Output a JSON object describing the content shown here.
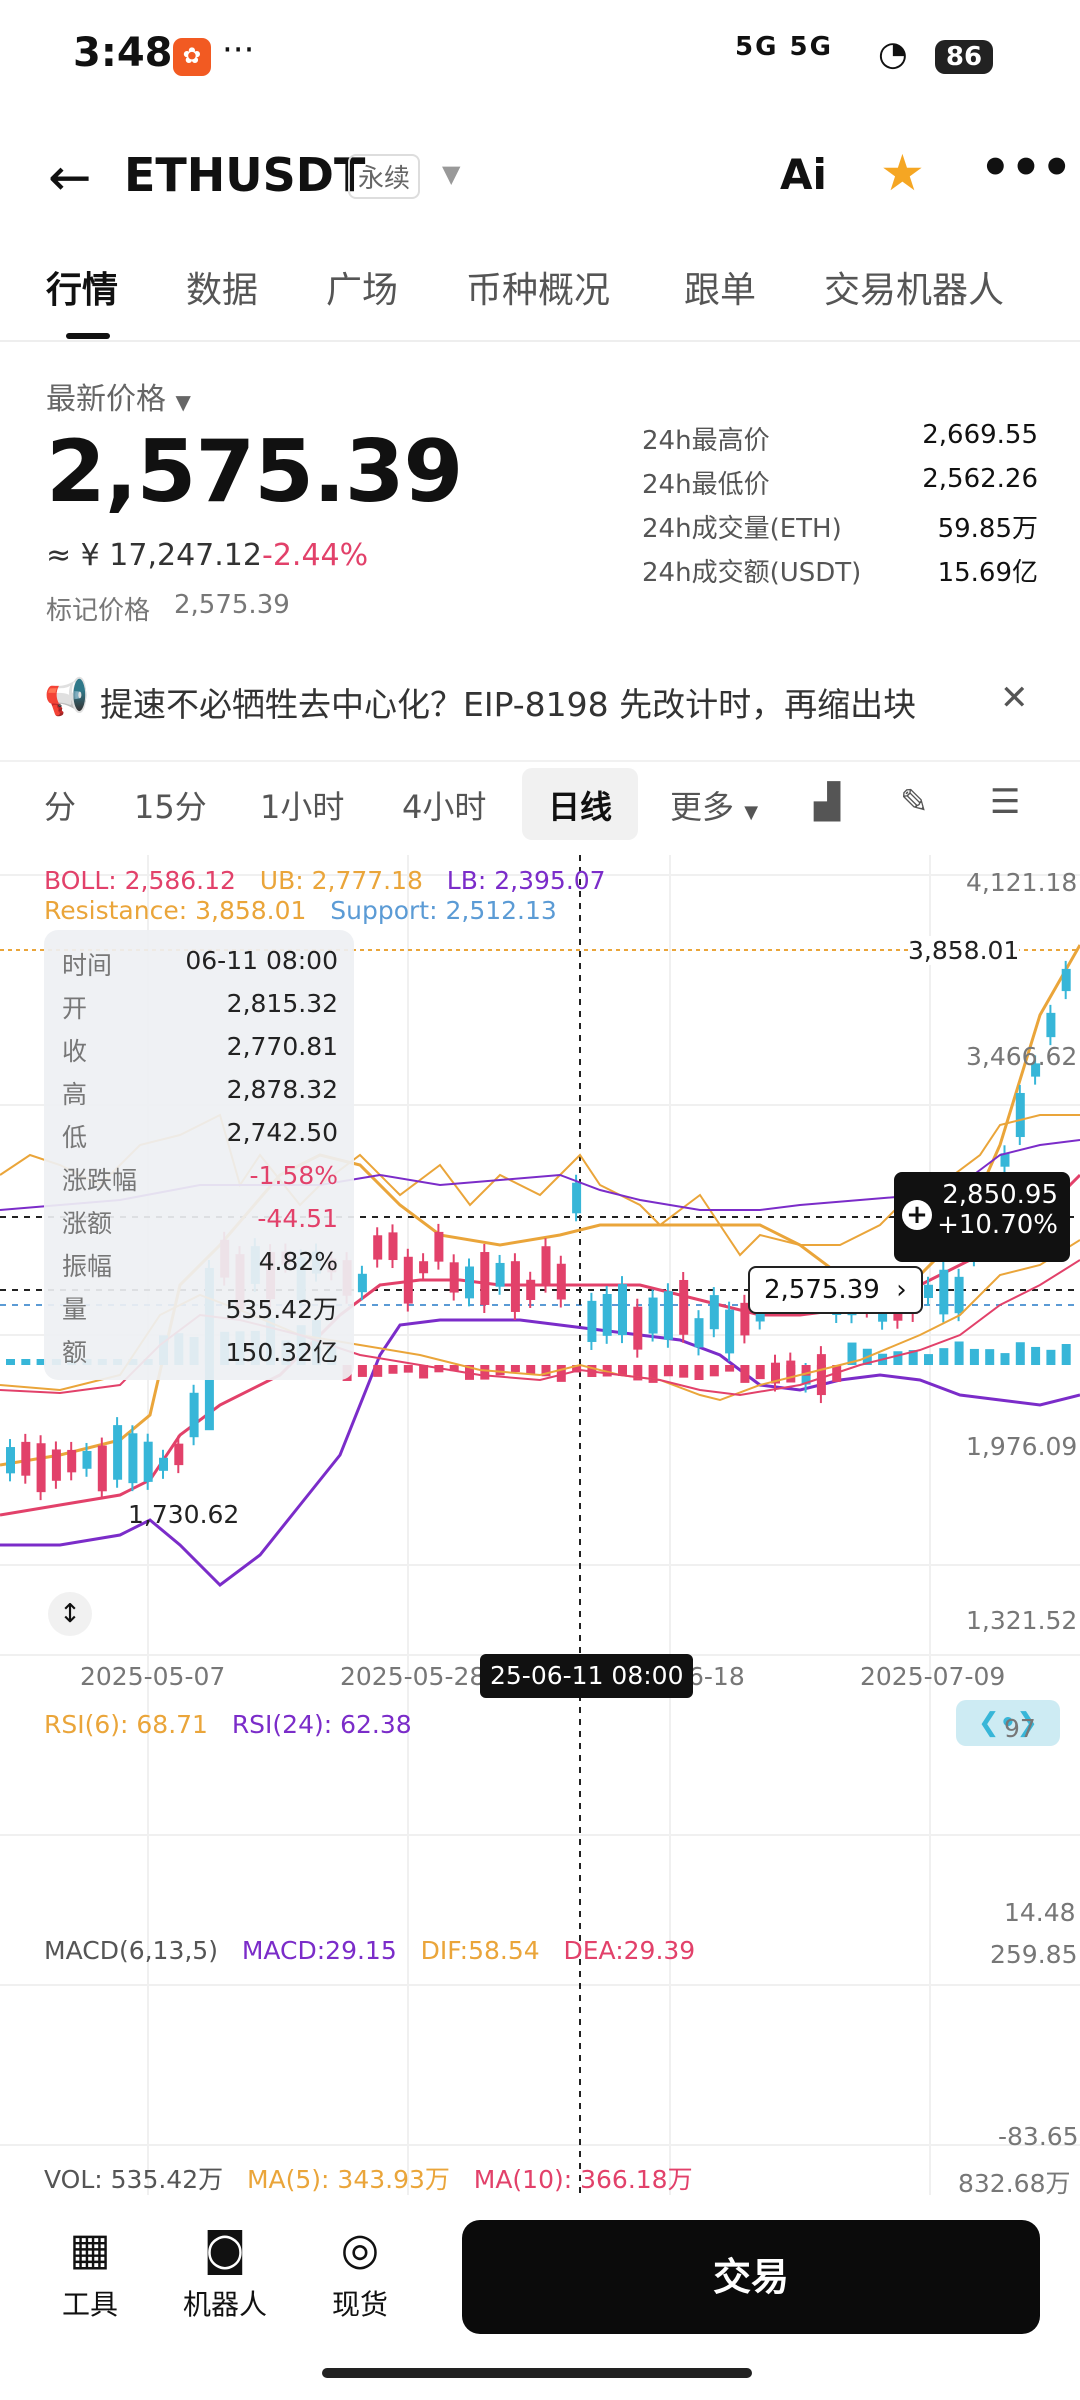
{
  "status_bar": {
    "time": "3:48",
    "network": "5G 5G",
    "battery": "86"
  },
  "header": {
    "pair": "ETHUSDT",
    "contract_type": "永续",
    "ai_label": "Ai"
  },
  "tabs": [
    "行情",
    "数据",
    "广场",
    "币种概况",
    "跟单",
    "交易机器人"
  ],
  "price": {
    "latest_label": "最新价格",
    "latest_value": "2,575.39",
    "cny_value": "≈ ¥ 17,247.12",
    "change_pct": "-2.44%",
    "mark_label": "标记价格",
    "mark_value": "2,575.39"
  },
  "stats": [
    {
      "label": "24h最高价",
      "value": "2,669.55"
    },
    {
      "label": "24h最低价",
      "value": "2,562.26"
    },
    {
      "label": "24h成交量(ETH)",
      "value": "59.85万"
    },
    {
      "label": "24h成交额(USDT)",
      "value": "15.69亿"
    }
  ],
  "notice": {
    "text": "提速不必牺牲去中心化？EIP-8198 先改计时，再缩出块"
  },
  "intervals": [
    "分",
    "15分",
    "1小时",
    "4小时",
    "日线",
    "更多"
  ],
  "chart_legend": {
    "boll": "BOLL: 2,586.12",
    "ub": "UB: 2,777.18",
    "lb": "LB: 2,395.07",
    "resistance": "Resistance: 3,858.01",
    "support": "Support: 2,512.13"
  },
  "axis_labels": {
    "y_top": "4,121.18",
    "resistance_line": "3,858.01",
    "y_346": "3,466.62",
    "y_1976": "1,976.09",
    "y_1321": "1,321.52",
    "low_marker": "1,730.62",
    "crosshair_price": "2,850.95",
    "crosshair_pct": "+10.70%",
    "current_price_tag": "2,575.39",
    "x_dates": [
      "2025-05-07",
      "2025-05-28",
      "6-18",
      "2025-07-09"
    ],
    "crosshair_date": "25-06-11 08:00"
  },
  "tooltip": [
    {
      "k": "时间",
      "v": "06-11 08:00"
    },
    {
      "k": "开",
      "v": "2,815.32"
    },
    {
      "k": "收",
      "v": "2,770.81"
    },
    {
      "k": "高",
      "v": "2,878.32"
    },
    {
      "k": "低",
      "v": "2,742.50"
    },
    {
      "k": "涨跌幅",
      "v": "-1.58%"
    },
    {
      "k": "涨额",
      "v": "-44.51"
    },
    {
      "k": "振幅",
      "v": "4.82%"
    },
    {
      "k": "量",
      "v": "535.42万"
    },
    {
      "k": "额",
      "v": "150.32亿"
    }
  ],
  "rsi": {
    "rsi6": "RSI(6): 68.71",
    "rsi24": "RSI(24): 62.38",
    "top": "97",
    "bottom": "14.48"
  },
  "macd": {
    "title": "MACD(6,13,5)",
    "macd": "MACD:29.15",
    "dif": "DIF:58.54",
    "dea": "DEA:29.39",
    "top": "259.85",
    "bottom": "-83.65"
  },
  "volume": {
    "vol": "VOL: 535.42万",
    "ma5": "MA(5): 343.93万",
    "ma10": "MA(10): 366.18万",
    "top": "832.68万"
  },
  "bottom_nav": [
    "工具",
    "机器人",
    "现货"
  ],
  "trade_button": "交易",
  "colors": {
    "up": "#37b6d8",
    "down": "#e2416a",
    "boll_mid": "#e2416a",
    "boll_ub": "#eaa53a",
    "boll_lb": "#7b2cc9",
    "accent_star": "#f5a623"
  }
}
